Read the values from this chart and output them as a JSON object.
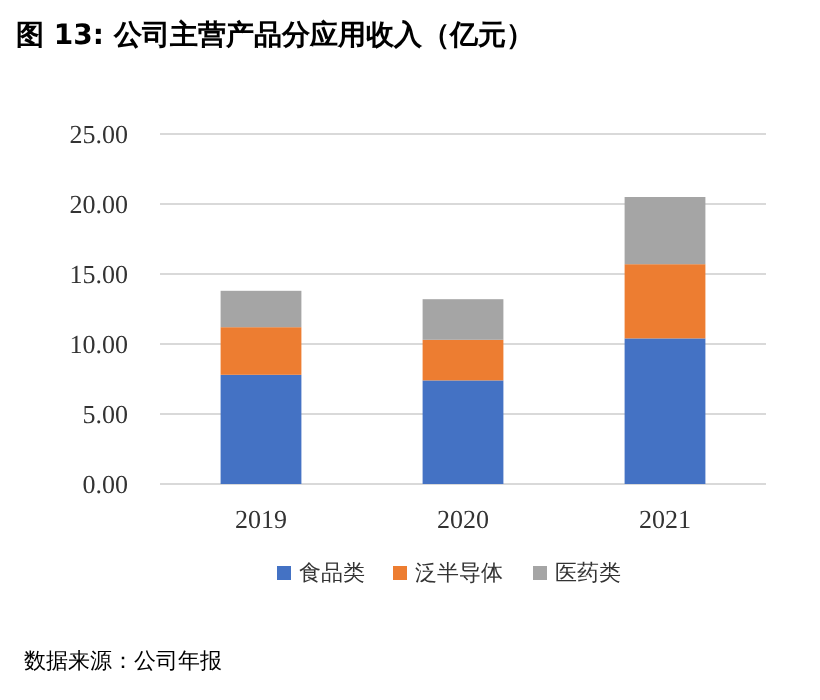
{
  "chart_data": {
    "type": "bar",
    "stacked": true,
    "title": "图 13:  公司主营产品分应用收入（亿元）",
    "categories": [
      "2019",
      "2020",
      "2021"
    ],
    "series": [
      {
        "name": "食品类",
        "color": "#4472c4",
        "values": [
          7.8,
          7.4,
          10.4
        ]
      },
      {
        "name": "泛半导体",
        "color": "#ed7d31",
        "values": [
          3.4,
          2.9,
          5.3
        ]
      },
      {
        "name": "医药类",
        "color": "#a5a5a5",
        "values": [
          2.6,
          2.9,
          4.8
        ]
      }
    ],
    "ylim": [
      0,
      25
    ],
    "yticks": [
      {
        "value": 0,
        "label": "0.00"
      },
      {
        "value": 5,
        "label": "5.00"
      },
      {
        "value": 10,
        "label": "10.00"
      },
      {
        "value": 15,
        "label": "15.00"
      },
      {
        "value": 20,
        "label": "20.00"
      },
      {
        "value": 25,
        "label": "25.00"
      }
    ],
    "grid": "y",
    "legend": "bottom",
    "annotations": [
      "数据来源：公司年报"
    ]
  }
}
